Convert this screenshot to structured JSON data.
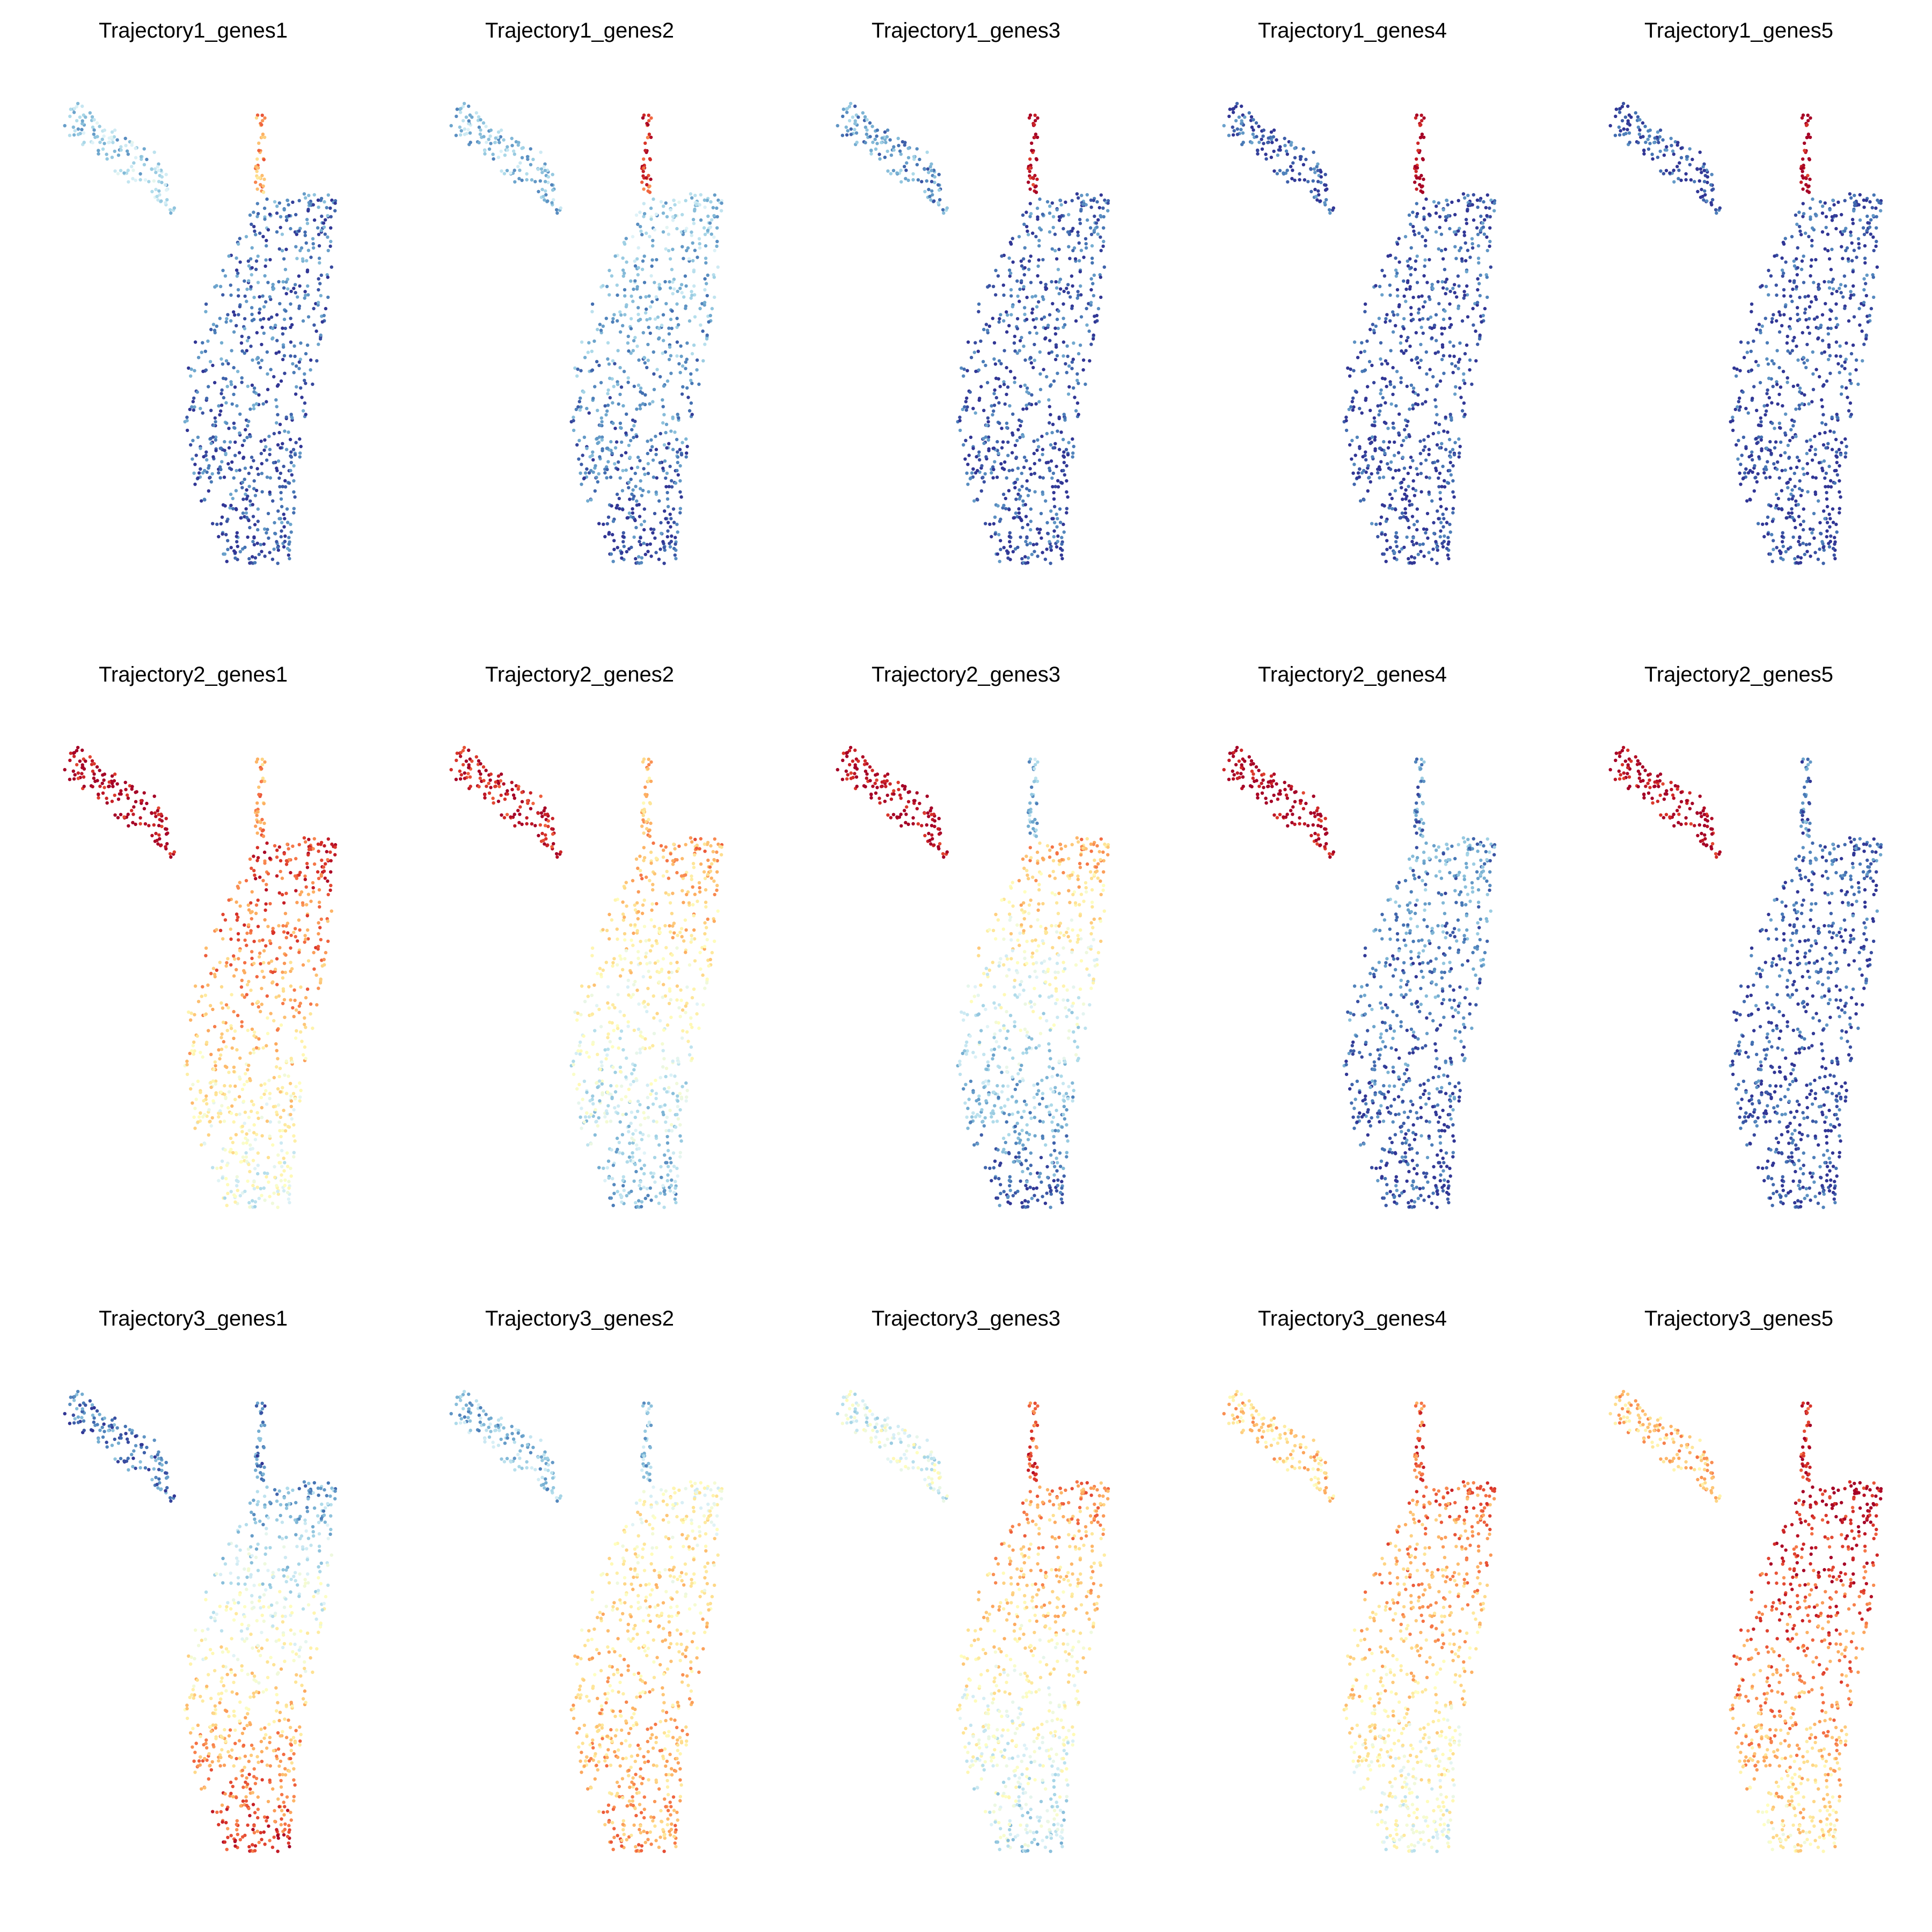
{
  "figure": {
    "colormap": "RdYlBu_r",
    "colors": [
      "#313695",
      "#4575b4",
      "#74add1",
      "#abd9e9",
      "#e0f3f8",
      "#ffffbf",
      "#fee090",
      "#fdae61",
      "#f46d43",
      "#d73027",
      "#a50026"
    ]
  },
  "chart_data": [
    {
      "type": "scatter",
      "title": "Trajectory1_genes1",
      "grid": false,
      "axes": "off",
      "profile": [
        0.28,
        0.7,
        0.12,
        0.05
      ]
    },
    {
      "type": "scatter",
      "title": "Trajectory1_genes2",
      "grid": false,
      "axes": "off",
      "profile": [
        0.26,
        0.88,
        0.3,
        0.03
      ]
    },
    {
      "type": "scatter",
      "title": "Trajectory1_genes3",
      "grid": false,
      "axes": "off",
      "profile": [
        0.18,
        0.98,
        0.08,
        0.03
      ]
    },
    {
      "type": "scatter",
      "title": "Trajectory1_genes4",
      "grid": false,
      "axes": "off",
      "profile": [
        0.05,
        1.0,
        0.06,
        0.02
      ]
    },
    {
      "type": "scatter",
      "title": "Trajectory1_genes5",
      "grid": false,
      "axes": "off",
      "profile": [
        0.03,
        1.0,
        0.03,
        0.02
      ]
    },
    {
      "type": "scatter",
      "title": "Trajectory2_genes1",
      "grid": false,
      "axes": "off",
      "profile": [
        1.0,
        0.72,
        0.9,
        0.4
      ]
    },
    {
      "type": "scatter",
      "title": "Trajectory2_genes2",
      "grid": false,
      "axes": "off",
      "profile": [
        0.95,
        0.65,
        0.72,
        0.22
      ]
    },
    {
      "type": "scatter",
      "title": "Trajectory2_genes3",
      "grid": false,
      "axes": "off",
      "profile": [
        1.0,
        0.25,
        0.7,
        0.05
      ]
    },
    {
      "type": "scatter",
      "title": "Trajectory2_genes4",
      "grid": false,
      "axes": "off",
      "profile": [
        1.0,
        0.15,
        0.18,
        0.03
      ]
    },
    {
      "type": "scatter",
      "title": "Trajectory2_genes5",
      "grid": false,
      "axes": "off",
      "profile": [
        1.0,
        0.12,
        0.06,
        0.02
      ]
    },
    {
      "type": "scatter",
      "title": "Trajectory3_genes1",
      "grid": false,
      "axes": "off",
      "profile": [
        0.12,
        0.12,
        0.18,
        0.9
      ]
    },
    {
      "type": "scatter",
      "title": "Trajectory3_genes2",
      "grid": false,
      "axes": "off",
      "profile": [
        0.25,
        0.25,
        0.5,
        0.72
      ]
    },
    {
      "type": "scatter",
      "title": "Trajectory3_genes3",
      "grid": false,
      "axes": "off",
      "profile": [
        0.4,
        0.85,
        0.75,
        0.32
      ]
    },
    {
      "type": "scatter",
      "title": "Trajectory3_genes4",
      "grid": false,
      "axes": "off",
      "profile": [
        0.62,
        0.82,
        0.8,
        0.42
      ]
    },
    {
      "type": "scatter",
      "title": "Trajectory3_genes5",
      "grid": false,
      "axes": "off",
      "profile": [
        0.66,
        0.92,
        0.98,
        0.55
      ]
    }
  ]
}
